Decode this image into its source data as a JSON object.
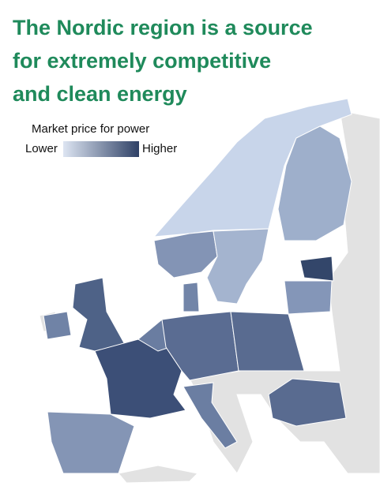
{
  "title_lines": [
    "The Nordic region is a source",
    "for extremely competitive",
    "and clean energy"
  ],
  "legend": {
    "title": "Market price for power",
    "low_label": "Lower",
    "high_label": "Higher"
  }
}
